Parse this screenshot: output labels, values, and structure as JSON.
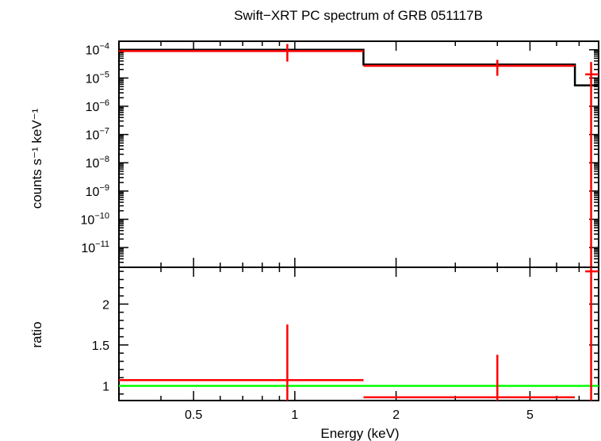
{
  "chart_data": [
    {
      "panel": "spectrum",
      "type": "line",
      "title": "Swift−XRT PC spectrum of GRB 051117B",
      "ylabel": "counts s⁻¹ keV⁻¹",
      "xscale": "log",
      "yscale": "log",
      "xlim": [
        0.3,
        8
      ],
      "ylim": [
        2e-12,
        0.0002
      ],
      "y_tick_labels": [
        {
          "base": "10",
          "exp": "−4",
          "value": 0.0001
        },
        {
          "base": "10",
          "exp": "−5",
          "value": 1e-05
        },
        {
          "base": "10",
          "exp": "−6",
          "value": 1e-06
        },
        {
          "base": "10",
          "exp": "−7",
          "value": 1e-07
        },
        {
          "base": "10",
          "exp": "−8",
          "value": 1e-08
        },
        {
          "base": "10",
          "exp": "−9",
          "value": 1e-09
        },
        {
          "base": "10",
          "exp": "−10",
          "value": 1e-10
        },
        {
          "base": "10",
          "exp": "−11",
          "value": 1e-11
        }
      ],
      "data_points": [
        {
          "x": 0.95,
          "xlo": 0.3,
          "xhi": 1.6,
          "y": 9e-05,
          "ylo": 3.8e-05,
          "yhi": 0.00016,
          "color": "#ff0000"
        },
        {
          "x": 4.0,
          "xlo": 1.6,
          "xhi": 6.8,
          "y": 2.7e-05,
          "ylo": 1.2e-05,
          "yhi": 4.4e-05,
          "color": "#ff0000"
        },
        {
          "x": 7.6,
          "xlo": 7.3,
          "xhi": 8.0,
          "y": 1.35e-05,
          "ylo": 1e-12,
          "yhi": 3.7e-05,
          "color": "#ff0000"
        }
      ],
      "model": {
        "color": "#000000",
        "steps": [
          {
            "x0": 0.3,
            "x1": 1.6,
            "y": 0.0001
          },
          {
            "x0": 1.6,
            "x1": 6.8,
            "y": 3e-05
          },
          {
            "x0": 6.8,
            "x1": 8.0,
            "y": 5.5e-06
          }
        ]
      }
    },
    {
      "panel": "ratio",
      "type": "scatter",
      "xlabel": "Energy (keV)",
      "ylabel": "ratio",
      "xscale": "log",
      "xlim": [
        0.3,
        8
      ],
      "ylim": [
        0.82,
        2.45
      ],
      "x_tick_labels": [
        {
          "label": "0.5",
          "value": 0.5
        },
        {
          "label": "1",
          "value": 1
        },
        {
          "label": "2",
          "value": 2
        },
        {
          "label": "5",
          "value": 5
        }
      ],
      "y_tick_labels": [
        {
          "label": "1",
          "value": 1
        },
        {
          "label": "1.5",
          "value": 1.5
        },
        {
          "label": "2",
          "value": 2
        }
      ],
      "data_points": [
        {
          "x": 0.95,
          "xlo": 0.3,
          "xhi": 1.6,
          "y": 1.07,
          "ylo": 0.82,
          "yhi": 1.75,
          "color": "#ff0000"
        },
        {
          "x": 4.0,
          "xlo": 1.6,
          "xhi": 6.8,
          "y": 0.86,
          "ylo": 0.82,
          "yhi": 1.38,
          "color": "#ff0000"
        },
        {
          "x": 7.6,
          "xlo": 7.3,
          "xhi": 8.0,
          "y": 2.4,
          "ylo": 0.82,
          "yhi": 2.45,
          "color": "#ff0000"
        }
      ],
      "reference_line": {
        "y": 1.0,
        "color": "#00ff00"
      }
    }
  ]
}
